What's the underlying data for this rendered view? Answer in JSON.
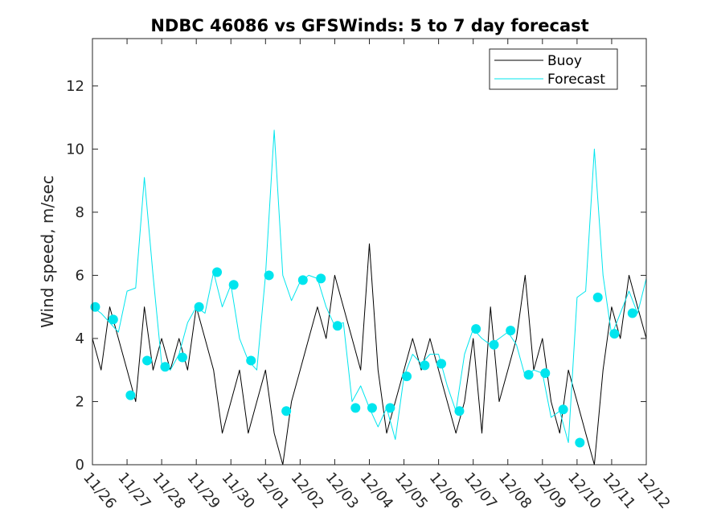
{
  "chart_data": {
    "type": "line",
    "title": "NDBC 46086 vs GFSWinds: 5 to 7 day forecast",
    "xlabel": "",
    "ylabel": "Wind speed, m/sec",
    "ylim": [
      0,
      13.5
    ],
    "xlim": [
      0,
      16
    ],
    "yticks": [
      0,
      2,
      4,
      6,
      8,
      10,
      12
    ],
    "ytick_labels": [
      "0",
      "2",
      "4",
      "6",
      "8",
      "10",
      "12"
    ],
    "xticks": [
      0,
      1,
      2,
      3,
      4,
      5,
      6,
      7,
      8,
      9,
      10,
      11,
      12,
      13,
      14,
      15,
      16
    ],
    "xtick_labels": [
      "11/26",
      "11/27",
      "11/28",
      "11/29",
      "11/30",
      "12/01",
      "12/02",
      "12/03",
      "12/04",
      "12/05",
      "12/06",
      "12/07",
      "12/08",
      "12/09",
      "12/10",
      "12/11",
      "12/12"
    ],
    "legend": {
      "position": "top-right",
      "entries": [
        {
          "label": "Buoy",
          "color": "#000000"
        },
        {
          "label": "Forecast",
          "color": "#00e5ee"
        }
      ]
    },
    "series": [
      {
        "name": "Buoy",
        "color": "#000000",
        "x": [
          0,
          0.25,
          0.5,
          0.75,
          1,
          1.25,
          1.5,
          1.75,
          2,
          2.25,
          2.5,
          2.75,
          3,
          3.25,
          3.5,
          3.75,
          4,
          4.25,
          4.5,
          4.75,
          5,
          5.25,
          5.5,
          5.75,
          6,
          6.25,
          6.5,
          6.75,
          7,
          7.25,
          7.5,
          7.75,
          8,
          8.25,
          8.5,
          8.75,
          9,
          9.25,
          9.5,
          9.75,
          10,
          10.25,
          10.5,
          10.75,
          11,
          11.25,
          11.5,
          11.75,
          12,
          12.25,
          12.5,
          12.75,
          13,
          13.25,
          13.5,
          13.75,
          14,
          14.25,
          14.5,
          14.75,
          15,
          15.25,
          15.5,
          15.75,
          16
        ],
        "y": [
          4,
          3,
          5,
          4,
          3,
          2,
          5,
          3,
          4,
          3,
          4,
          3,
          5,
          4,
          3,
          1,
          2,
          3,
          1,
          2,
          3,
          1,
          0,
          2,
          3,
          4,
          5,
          4,
          6,
          5,
          4,
          3,
          7,
          3,
          1,
          2,
          3,
          4,
          3,
          4,
          3,
          2,
          1,
          2,
          4,
          1,
          5,
          2,
          3,
          4,
          6,
          3,
          4,
          2,
          1,
          3,
          2,
          1,
          0,
          3,
          5,
          4,
          6,
          5,
          4
        ]
      },
      {
        "name": "Forecast",
        "color": "#00e5ee",
        "x": [
          0,
          0.25,
          0.5,
          0.75,
          1,
          1.25,
          1.5,
          1.75,
          2,
          2.25,
          2.5,
          2.75,
          3,
          3.25,
          3.5,
          3.75,
          4,
          4.25,
          4.5,
          4.75,
          5,
          5.25,
          5.5,
          5.75,
          6,
          6.25,
          6.5,
          6.75,
          7,
          7.25,
          7.5,
          7.75,
          8,
          8.25,
          8.5,
          8.75,
          9,
          9.25,
          9.5,
          9.75,
          10,
          10.25,
          10.5,
          10.75,
          11,
          11.25,
          11.5,
          11.75,
          12,
          12.25,
          12.5,
          12.75,
          13,
          13.25,
          13.5,
          13.75,
          14,
          14.25,
          14.5,
          14.75,
          15,
          15.25,
          15.5,
          15.75,
          16
        ],
        "y": [
          5,
          4.8,
          4.5,
          4.2,
          5.5,
          5.6,
          9.1,
          6,
          3.2,
          3,
          3.5,
          4.5,
          5,
          4.8,
          6.1,
          5,
          5.7,
          4,
          3.3,
          3,
          6,
          10.6,
          6,
          5.2,
          5.8,
          6,
          5.9,
          5,
          4.4,
          4.5,
          2,
          2.5,
          1.8,
          1.2,
          1.8,
          0.8,
          2.8,
          3.5,
          3.2,
          3.5,
          3.5,
          2.5,
          1.7,
          3.5,
          4.3,
          4,
          3.8,
          4,
          4.2,
          3.8,
          2.8,
          3,
          2.9,
          1.5,
          1.7,
          0.7,
          5.3,
          5.5,
          10,
          6,
          4.1,
          4.8,
          5.5,
          4.8,
          5.9
        ]
      },
      {
        "name": "Forecast markers",
        "color": "#00e5ee",
        "x": [
          0.08,
          0.6,
          1.1,
          1.58,
          2.1,
          2.6,
          3.08,
          3.6,
          4.08,
          4.58,
          5.1,
          5.6,
          6.08,
          6.6,
          7.08,
          7.6,
          8.08,
          8.6,
          9.08,
          9.6,
          10.08,
          10.6,
          11.08,
          11.6,
          12.08,
          12.6,
          13.08,
          13.6,
          14.08,
          14.6,
          15.08,
          15.6
        ],
        "y": [
          5,
          4.6,
          2.2,
          3.3,
          3.1,
          3.4,
          5,
          6.1,
          5.7,
          3.3,
          6,
          1.7,
          5.85,
          5.9,
          4.4,
          1.8,
          1.8,
          1.8,
          2.8,
          3.15,
          3.2,
          1.7,
          4.3,
          3.8,
          4.25,
          2.85,
          2.9,
          1.75,
          0.7,
          5.3,
          4.15,
          4.8
        ]
      }
    ]
  }
}
